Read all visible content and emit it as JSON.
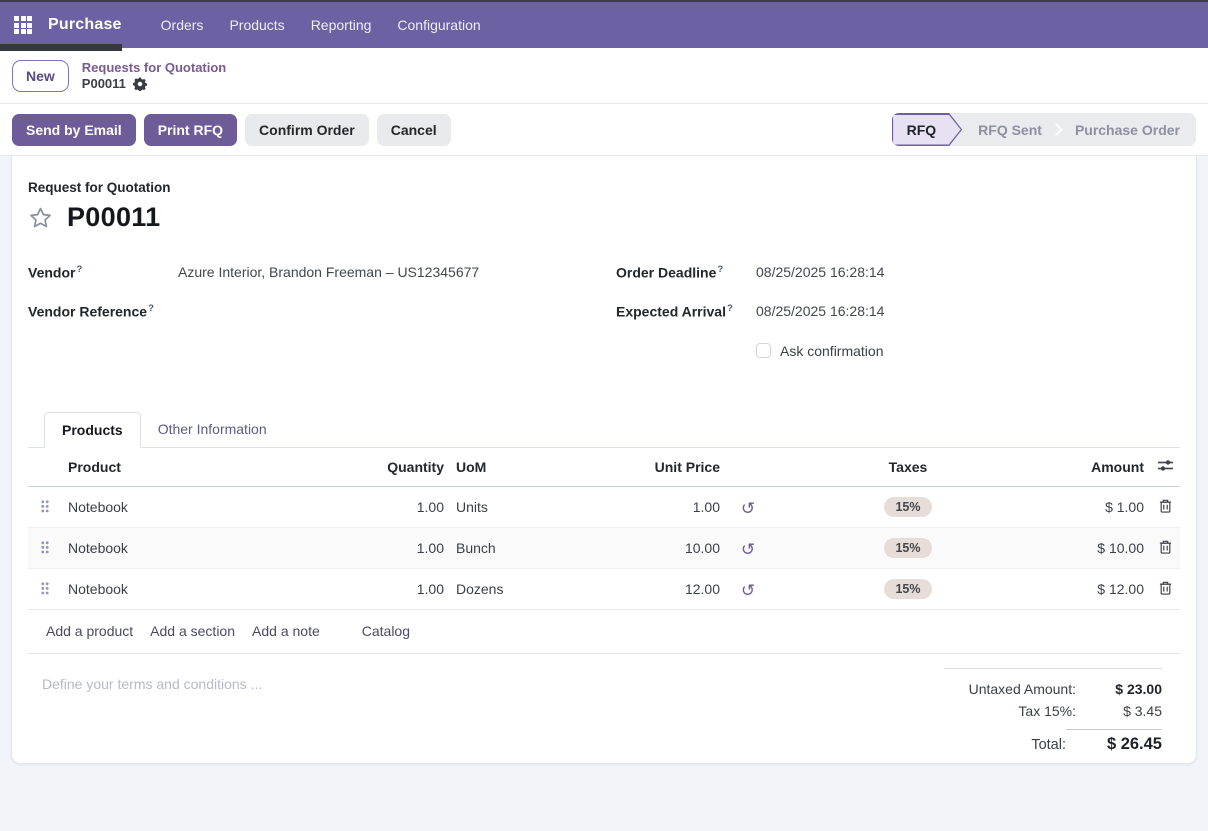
{
  "colors": {
    "accent": "#6C61A2",
    "primary_button": "#6D5C98",
    "status_active_bg": "#E7E1F3",
    "status_active_border": "#6F5F9E",
    "tax_badge_bg": "#E6DDD8",
    "link": "#4B4A66",
    "breadcrumb_link": "#7A5A94"
  },
  "navbar": {
    "app_name": "Purchase",
    "menus": [
      "Orders",
      "Products",
      "Reporting",
      "Configuration"
    ]
  },
  "breadcrumb": {
    "new_button": "New",
    "parent": "Requests for Quotation",
    "current": "P00011"
  },
  "actions": {
    "send_by_email": "Send by Email",
    "print_rfq": "Print RFQ",
    "confirm_order": "Confirm Order",
    "cancel": "Cancel"
  },
  "statusbar": {
    "steps": [
      {
        "label": "RFQ",
        "active": true
      },
      {
        "label": "RFQ Sent",
        "active": false
      },
      {
        "label": "Purchase Order",
        "active": false
      }
    ]
  },
  "form": {
    "doc_type": "Request for Quotation",
    "doc_name": "P00011",
    "help_marker": "?",
    "fields": {
      "vendor_label": "Vendor",
      "vendor_value": "Azure Interior, Brandon Freeman – US12345677",
      "vendor_ref_label": "Vendor Reference",
      "vendor_ref_value": "",
      "deadline_label": "Order Deadline",
      "deadline_value": "08/25/2025 16:28:14",
      "arrival_label": "Expected Arrival",
      "arrival_value": "08/25/2025 16:28:14",
      "ask_confirmation_label": "Ask confirmation"
    },
    "tabs": [
      {
        "label": "Products",
        "active": true
      },
      {
        "label": "Other Information",
        "active": false
      }
    ],
    "lines": {
      "columns": {
        "product": "Product",
        "quantity": "Quantity",
        "uom": "UoM",
        "unit_price": "Unit Price",
        "taxes": "Taxes",
        "amount": "Amount"
      },
      "rows": [
        {
          "product": "Notebook",
          "quantity": "1.00",
          "uom": "Units",
          "unit_price": "1.00",
          "taxes": "15%",
          "amount": "$ 1.00"
        },
        {
          "product": "Notebook",
          "quantity": "1.00",
          "uom": "Bunch",
          "unit_price": "10.00",
          "taxes": "15%",
          "amount": "$ 10.00"
        },
        {
          "product": "Notebook",
          "quantity": "1.00",
          "uom": "Dozens",
          "unit_price": "12.00",
          "taxes": "15%",
          "amount": "$ 12.00"
        }
      ],
      "footer_links": [
        "Add a product",
        "Add a section",
        "Add a note"
      ],
      "catalog_link": "Catalog"
    },
    "terms_placeholder": "Define your terms and conditions ...",
    "totals": {
      "untaxed_label": "Untaxed Amount:",
      "untaxed_value": "$ 23.00",
      "tax_label": "Tax 15%:",
      "tax_value": "$ 3.45",
      "total_label": "Total:",
      "total_value": "$ 26.45"
    }
  }
}
